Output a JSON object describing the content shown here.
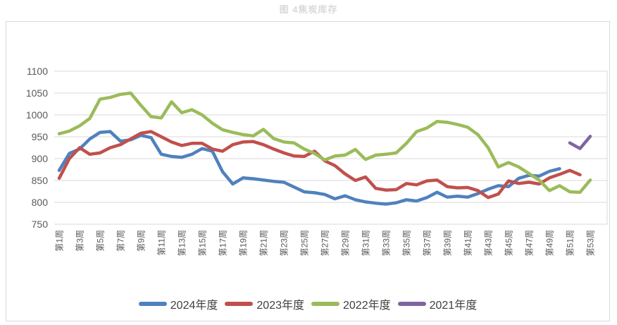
{
  "chart_data": {
    "type": "line",
    "title": "图 4焦炭库存",
    "x_tick_labels": [
      "第1周",
      "第3周",
      "第5周",
      "第7周",
      "第9周",
      "第11周",
      "第13周",
      "第15周",
      "第17周",
      "第19周",
      "第21周",
      "第23周",
      "第25周",
      "第27周",
      "第29周",
      "第31周",
      "第33周",
      "第35周",
      "第37周",
      "第39周",
      "第41周",
      "第43周",
      "第45周",
      "第47周",
      "第49周",
      "第51周",
      "第53周"
    ],
    "x_weeks_total": 53,
    "y_ticks": [
      1100,
      1050,
      1000,
      950,
      900,
      850,
      800,
      750
    ],
    "ylim": [
      750,
      1100
    ],
    "grid": "horizontal",
    "legend_position": "bottom",
    "series": [
      {
        "name": "2024年度",
        "color": "#4f81bd",
        "values": [
          873,
          912,
          922,
          945,
          960,
          962,
          940,
          943,
          953,
          948,
          910,
          905,
          903,
          910,
          923,
          917,
          870,
          842,
          856,
          854,
          851,
          848,
          846,
          835,
          824,
          822,
          818,
          808,
          815,
          806,
          801,
          798,
          796,
          799,
          806,
          803,
          811,
          823,
          812,
          814,
          812,
          820,
          830,
          838,
          836,
          855,
          862,
          860,
          871,
          877,
          null,
          null,
          null
        ]
      },
      {
        "name": "2023年度",
        "color": "#c0504d",
        "values": [
          855,
          900,
          925,
          910,
          913,
          925,
          932,
          945,
          958,
          962,
          950,
          938,
          930,
          935,
          935,
          922,
          917,
          932,
          938,
          939,
          932,
          922,
          913,
          906,
          905,
          917,
          895,
          884,
          865,
          850,
          858,
          832,
          828,
          829,
          843,
          840,
          849,
          851,
          836,
          833,
          834,
          827,
          811,
          819,
          849,
          843,
          846,
          842,
          856,
          864,
          873,
          863,
          null
        ]
      },
      {
        "name": "2022年度",
        "color": "#9bbb59",
        "values": [
          957,
          963,
          975,
          992,
          1036,
          1040,
          1047,
          1050,
          1022,
          996,
          993,
          1030,
          1005,
          1012,
          1000,
          981,
          966,
          960,
          955,
          952,
          967,
          946,
          938,
          936,
          922,
          912,
          897,
          906,
          908,
          921,
          898,
          908,
          910,
          913,
          935,
          962,
          970,
          985,
          983,
          978,
          972,
          955,
          925,
          881,
          891,
          881,
          866,
          851,
          827,
          838,
          824,
          823,
          851
        ]
      },
      {
        "name": "2021年度",
        "color": "#8064a2",
        "values": [
          null,
          null,
          null,
          null,
          null,
          null,
          null,
          null,
          null,
          null,
          null,
          null,
          null,
          null,
          null,
          null,
          null,
          null,
          null,
          null,
          null,
          null,
          null,
          null,
          null,
          null,
          null,
          null,
          null,
          null,
          null,
          null,
          null,
          null,
          null,
          null,
          null,
          null,
          null,
          null,
          null,
          null,
          null,
          null,
          null,
          null,
          null,
          null,
          null,
          null,
          936,
          923,
          951
        ]
      }
    ],
    "style": {
      "grid_color": "#d9d9d9",
      "tick_color": "#595959",
      "title_color": "#d9d9d9",
      "legend_text_color": "#404040",
      "background": "#ffffff"
    }
  }
}
